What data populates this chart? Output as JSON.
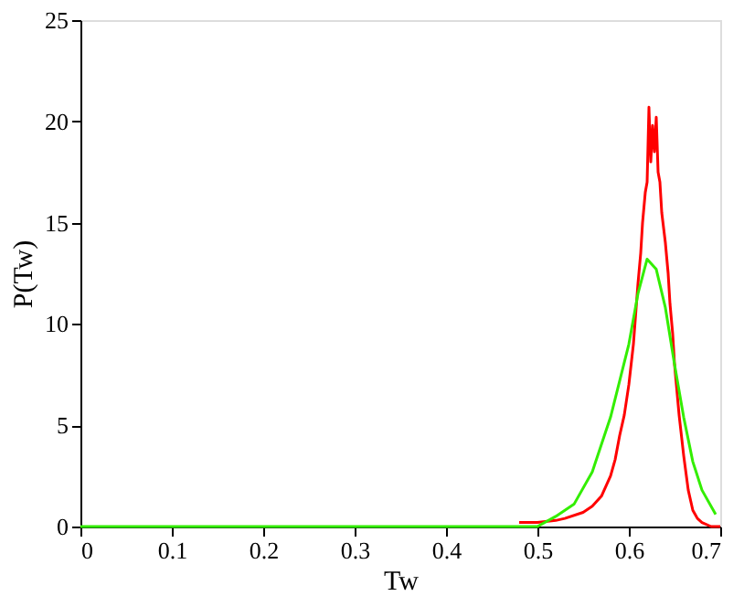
{
  "chart_data": {
    "type": "line",
    "xlabel": "Tw",
    "ylabel": "P(Tw)",
    "xlim": [
      0,
      0.7
    ],
    "xticks": [
      0,
      0.1,
      0.2,
      0.3,
      0.4,
      0.5,
      0.6,
      0.7
    ],
    "ylim": [
      0,
      25
    ],
    "yticks": [
      0,
      5,
      10,
      15,
      20,
      25
    ],
    "grid": false,
    "legend": false,
    "series": [
      {
        "color": "#ff0000",
        "x": [
          0.48,
          0.5,
          0.52,
          0.53,
          0.55,
          0.56,
          0.57,
          0.58,
          0.585,
          0.59,
          0.595,
          0.6,
          0.605,
          0.61,
          0.613,
          0.615,
          0.618,
          0.62,
          0.622,
          0.624,
          0.626,
          0.628,
          0.63,
          0.632,
          0.634,
          0.636,
          0.64,
          0.643,
          0.645,
          0.648,
          0.65,
          0.655,
          0.66,
          0.665,
          0.67,
          0.675,
          0.68,
          0.69,
          0.7
        ],
        "values": [
          0.2,
          0.2,
          0.3,
          0.4,
          0.7,
          1.0,
          1.5,
          2.5,
          3.3,
          4.5,
          5.5,
          7.0,
          9.0,
          12.0,
          13.5,
          15.0,
          16.5,
          17.0,
          20.7,
          18.0,
          19.8,
          18.5,
          20.2,
          17.5,
          17.0,
          15.5,
          14.0,
          12.5,
          11.0,
          9.5,
          8.0,
          5.5,
          3.5,
          1.8,
          0.8,
          0.4,
          0.2,
          0,
          0
        ]
      },
      {
        "color": "#33ee00",
        "x": [
          0,
          0.45,
          0.5,
          0.52,
          0.54,
          0.56,
          0.58,
          0.6,
          0.61,
          0.62,
          0.63,
          0.64,
          0.65,
          0.66,
          0.67,
          0.68,
          0.695
        ],
        "values": [
          0,
          0,
          0,
          0.5,
          1.1,
          2.7,
          5.4,
          9.0,
          11.5,
          13.2,
          12.7,
          10.8,
          8.0,
          5.4,
          3.2,
          1.8,
          0.6
        ]
      }
    ]
  }
}
